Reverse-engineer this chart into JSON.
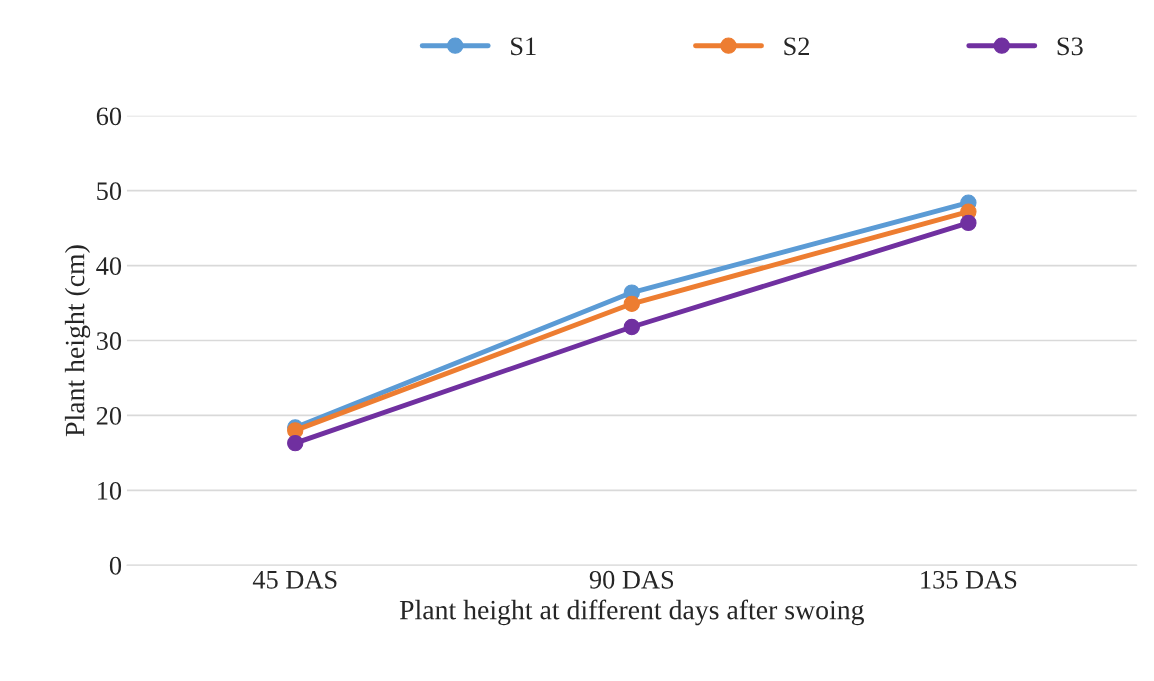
{
  "chart_data": {
    "type": "line",
    "xlabel": "Plant height at different days after swoing",
    "ylabel": "Plant height (cm)",
    "categories": [
      "45 DAS",
      "90 DAS",
      "135 DAS"
    ],
    "series": [
      {
        "name": "S1",
        "color": "#5b9bd5",
        "values": [
          18.4,
          36.4,
          48.4
        ]
      },
      {
        "name": "S2",
        "color": "#ed7d31",
        "values": [
          18.0,
          34.9,
          47.2
        ]
      },
      {
        "name": "S3",
        "color": "#7030a0",
        "values": [
          16.3,
          31.8,
          45.7
        ]
      }
    ],
    "ylim": [
      0,
      60
    ],
    "yticks": [
      0,
      10,
      20,
      30,
      40,
      50,
      60
    ],
    "grid": "y",
    "legend": "top",
    "marker": "circle",
    "line_style": "solid"
  }
}
